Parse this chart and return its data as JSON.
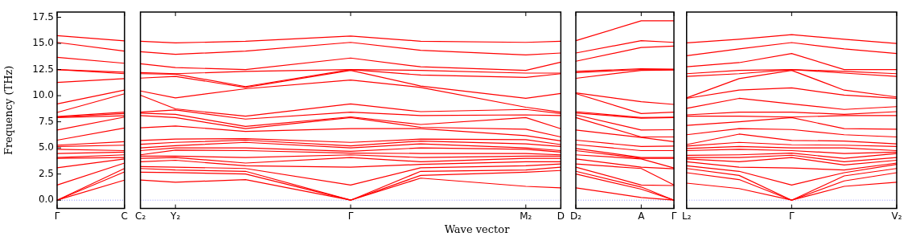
{
  "chart_data": [
    {
      "type": "line",
      "ylabel": "Frequency (THz)",
      "categories": [
        "Γ",
        "C"
      ],
      "ylim": [
        -0.8,
        18
      ],
      "yticks": [
        {
          "value": 0,
          "label": "0.0"
        },
        2.5,
        {
          "value": 5,
          "label": "5.0"
        },
        7.5,
        {
          "value": 10,
          "label": "10.0"
        },
        12.5,
        {
          "value": 15,
          "label": "15.0"
        },
        17.5
      ],
      "grid": false,
      "legend": false,
      "marker": "none",
      "line_style": "solid",
      "ref_lines": [
        {
          "axis": "y",
          "value": 0,
          "color": "#7777ff",
          "line_style": "dotted"
        }
      ],
      "series": [
        {
          "color": "#ff0000",
          "values": [
            15.74,
            15.24
          ]
        },
        {
          "color": "#ff0000",
          "values": [
            15.1,
            14.26
          ]
        },
        {
          "color": "#ff0000",
          "values": [
            13.66,
            13.1
          ]
        },
        {
          "color": "#ff0000",
          "values": [
            12.5,
            12.24
          ]
        },
        {
          "color": "#ff0000",
          "values": [
            12.5,
            12.1
          ]
        },
        {
          "color": "#ff0000",
          "values": [
            11.26,
            11.63
          ]
        },
        {
          "color": "#ff0000",
          "values": [
            9.21,
            10.53
          ]
        },
        {
          "color": "#ff0000",
          "values": [
            8.39,
            10.18
          ]
        },
        {
          "color": "#ff0000",
          "values": [
            8.0,
            8.42
          ]
        },
        {
          "color": "#ff0000",
          "values": [
            7.95,
            8.29
          ]
        },
        {
          "color": "#ff0000",
          "values": [
            7.9,
            8.08
          ]
        },
        {
          "color": "#ff0000",
          "values": [
            6.71,
            7.95
          ]
        },
        {
          "color": "#ff0000",
          "values": [
            5.74,
            6.9
          ]
        },
        {
          "color": "#ff0000",
          "values": [
            5.26,
            5.6
          ]
        },
        {
          "color": "#ff0000",
          "values": [
            5.13,
            5.26
          ]
        },
        {
          "color": "#ff0000",
          "values": [
            4.87,
            4.74
          ]
        },
        {
          "color": "#ff0000",
          "values": [
            4.47,
            4.6
          ]
        },
        {
          "color": "#ff0000",
          "values": [
            4.08,
            4.34
          ]
        },
        {
          "color": "#ff0000",
          "values": [
            4.0,
            4.08
          ]
        },
        {
          "color": "#ff0000",
          "values": [
            3.1,
            3.95
          ]
        },
        {
          "color": "#ff0000",
          "values": [
            1.45,
            3.55
          ]
        },
        {
          "color": "#ff0000",
          "values": [
            0,
            3.03
          ]
        },
        {
          "color": "#ff0000",
          "values": [
            0,
            2.71
          ]
        },
        {
          "color": "#ff0000",
          "values": [
            0,
            1.92
          ]
        }
      ]
    },
    {
      "type": "line",
      "xlabel": "Wave vector",
      "tick_labels": "x",
      "categories": [
        "C₂",
        "Y₂",
        null,
        null,
        null,
        null,
        "Γ",
        null,
        null,
        null,
        null,
        "M₂",
        "D"
      ],
      "ylim": [
        -0.8,
        18
      ],
      "grid": false,
      "legend": false,
      "marker": "none",
      "line_style": "solid",
      "ref_lines": [
        {
          "axis": "y",
          "value": 0,
          "color": "#7777ff",
          "line_style": "dotted"
        }
      ],
      "series": [
        {
          "color": "#ff0000",
          "values": [
            15.21,
            15.05,
            null,
            15.21,
            null,
            null,
            15.71,
            null,
            15.21,
            null,
            null,
            15.1,
            15.21
          ]
        },
        {
          "color": "#ff0000",
          "values": [
            14.21,
            13.95,
            null,
            14.26,
            null,
            null,
            15.1,
            null,
            14.34,
            null,
            null,
            13.89,
            14.08
          ]
        },
        {
          "color": "#ff0000",
          "values": [
            13.05,
            12.68,
            null,
            12.5,
            null,
            null,
            13.6,
            null,
            12.76,
            null,
            null,
            12.42,
            13.21
          ]
        },
        {
          "color": "#ff0000",
          "values": [
            12.21,
            12.1,
            null,
            12.32,
            null,
            null,
            12.5,
            null,
            12.42,
            null,
            null,
            12.16,
            12.16
          ]
        },
        {
          "color": "#ff0000",
          "values": [
            12.1,
            12.05,
            null,
            10.87,
            null,
            null,
            12.5,
            null,
            11.97,
            null,
            null,
            11.74,
            12.1
          ]
        },
        {
          "color": "#ff0000",
          "values": [
            11.68,
            11.84,
            null,
            10.79,
            null,
            null,
            12.42,
            null,
            10.92,
            null,
            null,
            9.74,
            10.21
          ]
        },
        {
          "color": "#ff0000",
          "values": [
            10.45,
            9.79,
            null,
            10.66,
            null,
            null,
            11.5,
            null,
            10.79,
            null,
            null,
            8.89,
            8.42
          ]
        },
        {
          "color": "#ff0000",
          "values": [
            10.05,
            8.74,
            null,
            8.03,
            null,
            null,
            9.21,
            null,
            8.47,
            null,
            null,
            8.68,
            8.29
          ]
        },
        {
          "color": "#ff0000",
          "values": [
            8.42,
            8.63,
            null,
            7.76,
            null,
            null,
            8.42,
            null,
            8.1,
            null,
            null,
            8.16,
            8.1
          ]
        },
        {
          "color": "#ff0000",
          "values": [
            8.32,
            8.21,
            null,
            7.05,
            null,
            null,
            7.97,
            null,
            7.24,
            null,
            null,
            7.9,
            6.84
          ]
        },
        {
          "color": "#ff0000",
          "values": [
            8.1,
            7.9,
            null,
            6.84,
            null,
            null,
            7.9,
            null,
            6.97,
            null,
            null,
            6.79,
            6.05
          ]
        },
        {
          "color": "#ff0000",
          "values": [
            6.92,
            7.1,
            null,
            6.58,
            null,
            null,
            6.84,
            null,
            6.84,
            null,
            null,
            6.18,
            5.68
          ]
        },
        {
          "color": "#ff0000",
          "values": [
            5.71,
            5.84,
            null,
            5.89,
            null,
            null,
            5.53,
            null,
            5.84,
            null,
            null,
            5.79,
            5.32
          ]
        },
        {
          "color": "#ff0000",
          "values": [
            5.34,
            5.53,
            null,
            5.74,
            null,
            null,
            5.2,
            null,
            5.66,
            null,
            null,
            5.39,
            5.13
          ]
        },
        {
          "color": "#ff0000",
          "values": [
            5.0,
            5.21,
            null,
            5.53,
            null,
            null,
            5.0,
            null,
            5.39,
            null,
            null,
            5.0,
            4.74
          ]
        },
        {
          "color": "#ff0000",
          "values": [
            4.74,
            5.0,
            null,
            5.0,
            null,
            null,
            4.68,
            null,
            5.0,
            null,
            null,
            4.87,
            4.6
          ]
        },
        {
          "color": "#ff0000",
          "values": [
            4.34,
            4.79,
            null,
            4.74,
            null,
            null,
            4.5,
            null,
            4.47,
            null,
            null,
            4.47,
            4.34
          ]
        },
        {
          "color": "#ff0000",
          "values": [
            4.21,
            4.21,
            null,
            4.08,
            null,
            null,
            4.34,
            null,
            4.08,
            null,
            null,
            4.21,
            4.21
          ]
        },
        {
          "color": "#ff0000",
          "values": [
            4.0,
            4.08,
            null,
            3.55,
            null,
            null,
            4.08,
            null,
            3.68,
            null,
            null,
            4.0,
            4.0
          ]
        },
        {
          "color": "#ff0000",
          "values": [
            3.68,
            3.82,
            null,
            3.29,
            null,
            null,
            3.16,
            null,
            3.42,
            null,
            null,
            3.68,
            3.68
          ]
        },
        {
          "color": "#ff0000",
          "values": [
            3.21,
            3.16,
            null,
            3.03,
            null,
            null,
            1.45,
            null,
            3.1,
            null,
            null,
            3.29,
            3.47
          ]
        },
        {
          "color": "#ff0000",
          "values": [
            3.03,
            2.89,
            null,
            2.76,
            null,
            null,
            0,
            null,
            2.76,
            null,
            null,
            2.89,
            3.16
          ]
        },
        {
          "color": "#ff0000",
          "values": [
            2.68,
            2.63,
            null,
            2.5,
            null,
            null,
            0,
            null,
            2.37,
            null,
            null,
            2.68,
            2.84
          ]
        },
        {
          "color": "#ff0000",
          "values": [
            1.92,
            1.71,
            null,
            1.97,
            null,
            null,
            0,
            null,
            2.11,
            null,
            null,
            1.32,
            1.18
          ]
        }
      ]
    },
    {
      "type": "line",
      "tick_labels": "x",
      "categories": [
        "D₂",
        null,
        "A",
        "Γ"
      ],
      "ylim": [
        -0.8,
        18
      ],
      "grid": false,
      "legend": false,
      "marker": "none",
      "line_style": "solid",
      "ref_lines": [
        {
          "axis": "y",
          "value": 0,
          "color": "#7777ff",
          "line_style": "dotted"
        }
      ],
      "series": [
        {
          "color": "#ff0000",
          "values": [
            15.26,
            null,
            17.16,
            17.16
          ]
        },
        {
          "color": "#ff0000",
          "values": [
            14.08,
            null,
            15.26,
            15.1
          ]
        },
        {
          "color": "#ff0000",
          "values": [
            13.29,
            null,
            14.61,
            14.74
          ]
        },
        {
          "color": "#ff0000",
          "values": [
            12.32,
            null,
            12.58,
            12.53
          ]
        },
        {
          "color": "#ff0000",
          "values": [
            12.21,
            null,
            12.5,
            12.5
          ]
        },
        {
          "color": "#ff0000",
          "values": [
            11.66,
            null,
            12.42,
            12.45
          ]
        },
        {
          "color": "#ff0000",
          "values": [
            10.26,
            null,
            9.42,
            9.16
          ]
        },
        {
          "color": "#ff0000",
          "values": [
            10.2,
            null,
            8.29,
            8.42
          ]
        },
        {
          "color": "#ff0000",
          "values": [
            8.47,
            null,
            7.9,
            7.95
          ]
        },
        {
          "color": "#ff0000",
          "values": [
            8.34,
            null,
            7.85,
            7.9
          ]
        },
        {
          "color": "#ff0000",
          "values": [
            8.16,
            null,
            6.71,
            6.74
          ]
        },
        {
          "color": "#ff0000",
          "values": [
            7.9,
            null,
            6.05,
            6.05
          ]
        },
        {
          "color": "#ff0000",
          "values": [
            6.71,
            null,
            6.0,
            5.6
          ]
        },
        {
          "color": "#ff0000",
          "values": [
            5.74,
            null,
            5.13,
            5.18
          ]
        },
        {
          "color": "#ff0000",
          "values": [
            5.32,
            null,
            4.74,
            4.74
          ]
        },
        {
          "color": "#ff0000",
          "values": [
            4.95,
            null,
            4.08,
            4.08
          ]
        },
        {
          "color": "#ff0000",
          "values": [
            4.74,
            null,
            4.0,
            4.0
          ]
        },
        {
          "color": "#ff0000",
          "values": [
            4.34,
            null,
            3.95,
            3.08
          ]
        },
        {
          "color": "#ff0000",
          "values": [
            3.95,
            null,
            3.16,
            3.0
          ]
        },
        {
          "color": "#ff0000",
          "values": [
            3.47,
            null,
            3.03,
            1.45
          ]
        },
        {
          "color": "#ff0000",
          "values": [
            3.16,
            null,
            1.45,
            1.4
          ]
        },
        {
          "color": "#ff0000",
          "values": [
            2.76,
            null,
            1.26,
            0
          ]
        },
        {
          "color": "#ff0000",
          "values": [
            2.5,
            null,
            1.05,
            0
          ]
        },
        {
          "color": "#ff0000",
          "values": [
            1.18,
            null,
            0.26,
            0
          ]
        }
      ]
    },
    {
      "type": "line",
      "tick_labels": "x",
      "categories": [
        "L₂",
        null,
        "Γ",
        null,
        "V₂"
      ],
      "ylim": [
        -0.8,
        18
      ],
      "grid": false,
      "legend": false,
      "marker": "none",
      "line_style": "solid",
      "ref_lines": [
        {
          "axis": "y",
          "value": 0,
          "color": "#7777ff",
          "line_style": "dotted"
        }
      ],
      "series": [
        {
          "color": "#ff0000",
          "values": [
            15.05,
            15.39,
            15.84,
            15.39,
            15.0
          ]
        },
        {
          "color": "#ff0000",
          "values": [
            13.82,
            14.47,
            15.08,
            14.47,
            14.03
          ]
        },
        {
          "color": "#ff0000",
          "values": [
            12.76,
            13.16,
            14.03,
            12.5,
            12.5
          ]
        },
        {
          "color": "#ff0000",
          "values": [
            12.1,
            12.42,
            12.5,
            12.32,
            12.1
          ]
        },
        {
          "color": "#ff0000",
          "values": [
            11.84,
            12.1,
            12.5,
            12.16,
            11.84
          ]
        },
        {
          "color": "#ff0000",
          "values": [
            9.79,
            11.63,
            12.42,
            10.53,
            9.87
          ]
        },
        {
          "color": "#ff0000",
          "values": [
            9.74,
            10.53,
            10.74,
            10.05,
            9.74
          ]
        },
        {
          "color": "#ff0000",
          "values": [
            8.79,
            9.74,
            9.21,
            8.68,
            8.95
          ]
        },
        {
          "color": "#ff0000",
          "values": [
            8.16,
            8.42,
            8.42,
            8.21,
            8.47
          ]
        },
        {
          "color": "#ff0000",
          "values": [
            8.03,
            8.03,
            7.95,
            8.1,
            8.1
          ]
        },
        {
          "color": "#ff0000",
          "values": [
            7.16,
            7.5,
            7.9,
            6.84,
            6.79
          ]
        },
        {
          "color": "#ff0000",
          "values": [
            6.26,
            6.84,
            6.76,
            6.26,
            6.05
          ]
        },
        {
          "color": "#ff0000",
          "values": [
            5.32,
            6.32,
            5.71,
            5.66,
            5.39
          ]
        },
        {
          "color": "#ff0000",
          "values": [
            5.18,
            5.53,
            5.3,
            5.26,
            5.13
          ]
        },
        {
          "color": "#ff0000",
          "values": [
            4.95,
            5.13,
            5.0,
            5.0,
            4.74
          ]
        },
        {
          "color": "#ff0000",
          "values": [
            4.74,
            4.87,
            4.74,
            4.47,
            4.6
          ]
        },
        {
          "color": "#ff0000",
          "values": [
            4.29,
            4.34,
            4.5,
            4.0,
            4.47
          ]
        },
        {
          "color": "#ff0000",
          "values": [
            4.08,
            4.08,
            4.3,
            3.68,
            4.08
          ]
        },
        {
          "color": "#ff0000",
          "values": [
            3.95,
            3.68,
            4.08,
            3.37,
            3.82
          ]
        },
        {
          "color": "#ff0000",
          "values": [
            3.68,
            3.16,
            3.08,
            2.89,
            3.55
          ]
        },
        {
          "color": "#ff0000",
          "values": [
            3.29,
            2.76,
            1.45,
            2.63,
            3.42
          ]
        },
        {
          "color": "#ff0000",
          "values": [
            3.03,
            2.37,
            0,
            2.32,
            3.03
          ]
        },
        {
          "color": "#ff0000",
          "values": [
            2.63,
            1.97,
            0,
            1.84,
            2.63
          ]
        },
        {
          "color": "#ff0000",
          "values": [
            1.63,
            1.11,
            0,
            1.32,
            1.71
          ]
        }
      ]
    }
  ]
}
